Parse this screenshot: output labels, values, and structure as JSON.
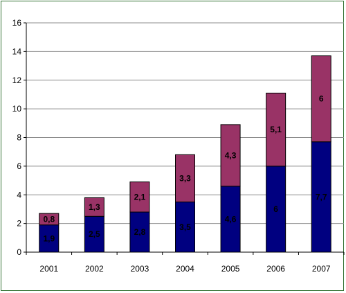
{
  "chart_data": {
    "type": "bar",
    "stacked": true,
    "categories": [
      "2001",
      "2002",
      "2003",
      "2004",
      "2005",
      "2006",
      "2007"
    ],
    "series": [
      {
        "values": [
          1.9,
          2.5,
          2.8,
          3.5,
          4.6,
          6,
          7.7
        ],
        "labels": [
          "1,9",
          "2,5",
          "2,8",
          "3,5",
          "4,6",
          "6",
          "7,7"
        ],
        "color": "#000080"
      },
      {
        "values": [
          0.8,
          1.3,
          2.1,
          3.3,
          4.3,
          5.1,
          6
        ],
        "labels": [
          "0,8",
          "1,3",
          "2,1",
          "3,3",
          "4,3",
          "5,1",
          "6"
        ],
        "color": "#993366"
      }
    ],
    "title": "",
    "xlabel": "",
    "ylabel": "",
    "ylim": [
      0,
      16
    ],
    "yticks": [
      "0",
      "2",
      "4",
      "6",
      "8",
      "10",
      "12",
      "14",
      "16"
    ],
    "grid": true,
    "legend": "none"
  }
}
